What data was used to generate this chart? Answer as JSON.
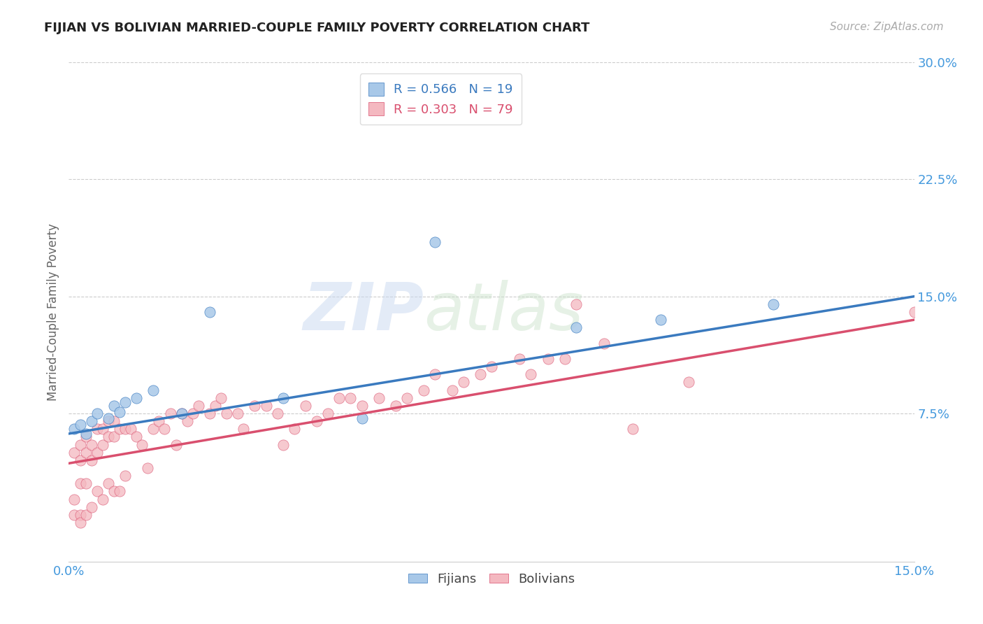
{
  "title": "FIJIAN VS BOLIVIAN MARRIED-COUPLE FAMILY POVERTY CORRELATION CHART",
  "source_text": "Source: ZipAtlas.com",
  "ylabel": "Married-Couple Family Poverty",
  "xlim": [
    0.0,
    0.15
  ],
  "ylim": [
    -0.02,
    0.3
  ],
  "ytick_labels": [
    "7.5%",
    "15.0%",
    "22.5%",
    "30.0%"
  ],
  "ytick_positions": [
    0.075,
    0.15,
    0.225,
    0.3
  ],
  "xtick_labels": [
    "0.0%",
    "15.0%"
  ],
  "xtick_positions": [
    0.0,
    0.15
  ],
  "watermark_top": "ZIP",
  "watermark_bottom": "atlas",
  "fijian_color": "#a8c8e8",
  "bolivian_color": "#f4b8c0",
  "fijian_line_color": "#3a7abf",
  "bolivian_line_color": "#d94f6e",
  "legend_fijian_label": "R = 0.566   N = 19",
  "legend_bolivian_label": "R = 0.303   N = 79",
  "fijians_label": "Fijians",
  "bolivians_label": "Bolivians",
  "fijian_x": [
    0.001,
    0.002,
    0.003,
    0.004,
    0.005,
    0.007,
    0.008,
    0.009,
    0.01,
    0.012,
    0.015,
    0.02,
    0.025,
    0.038,
    0.052,
    0.065,
    0.09,
    0.105,
    0.125
  ],
  "fijian_y": [
    0.065,
    0.068,
    0.062,
    0.07,
    0.075,
    0.072,
    0.08,
    0.076,
    0.082,
    0.085,
    0.09,
    0.075,
    0.14,
    0.085,
    0.072,
    0.185,
    0.13,
    0.135,
    0.145
  ],
  "bolivian_x": [
    0.001,
    0.001,
    0.001,
    0.002,
    0.002,
    0.002,
    0.002,
    0.002,
    0.003,
    0.003,
    0.003,
    0.003,
    0.004,
    0.004,
    0.004,
    0.005,
    0.005,
    0.005,
    0.006,
    0.006,
    0.006,
    0.007,
    0.007,
    0.007,
    0.008,
    0.008,
    0.008,
    0.009,
    0.009,
    0.01,
    0.01,
    0.011,
    0.012,
    0.013,
    0.014,
    0.015,
    0.016,
    0.017,
    0.018,
    0.019,
    0.02,
    0.021,
    0.022,
    0.023,
    0.025,
    0.026,
    0.027,
    0.028,
    0.03,
    0.031,
    0.033,
    0.035,
    0.037,
    0.038,
    0.04,
    0.042,
    0.044,
    0.046,
    0.048,
    0.05,
    0.052,
    0.055,
    0.058,
    0.06,
    0.063,
    0.065,
    0.068,
    0.07,
    0.073,
    0.075,
    0.08,
    0.082,
    0.085,
    0.088,
    0.09,
    0.095,
    0.1,
    0.11,
    0.15
  ],
  "bolivian_y": [
    0.05,
    0.02,
    0.01,
    0.055,
    0.045,
    0.03,
    0.01,
    0.005,
    0.06,
    0.05,
    0.03,
    0.01,
    0.055,
    0.045,
    0.015,
    0.065,
    0.05,
    0.025,
    0.065,
    0.055,
    0.02,
    0.06,
    0.07,
    0.03,
    0.07,
    0.06,
    0.025,
    0.065,
    0.025,
    0.065,
    0.035,
    0.065,
    0.06,
    0.055,
    0.04,
    0.065,
    0.07,
    0.065,
    0.075,
    0.055,
    0.075,
    0.07,
    0.075,
    0.08,
    0.075,
    0.08,
    0.085,
    0.075,
    0.075,
    0.065,
    0.08,
    0.08,
    0.075,
    0.055,
    0.065,
    0.08,
    0.07,
    0.075,
    0.085,
    0.085,
    0.08,
    0.085,
    0.08,
    0.085,
    0.09,
    0.1,
    0.09,
    0.095,
    0.1,
    0.105,
    0.11,
    0.1,
    0.11,
    0.11,
    0.145,
    0.12,
    0.065,
    0.095,
    0.14
  ],
  "title_color": "#222222",
  "axis_label_color": "#666666",
  "tick_label_color": "#4499dd",
  "grid_color": "#cccccc",
  "background_color": "#ffffff"
}
